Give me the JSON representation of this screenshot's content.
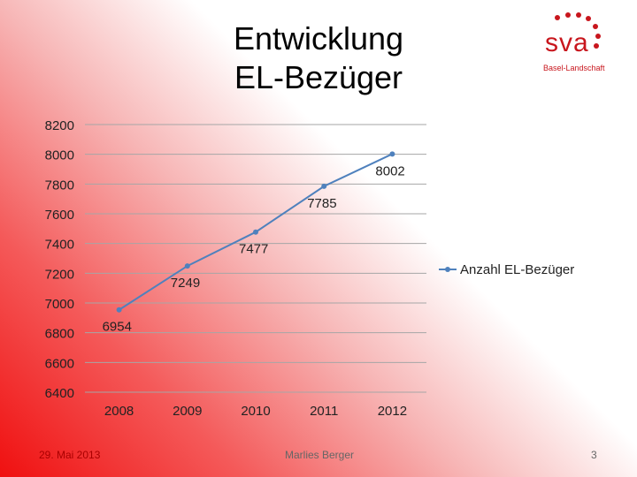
{
  "title_lines": [
    "Entwicklung",
    "EL-Bezüger"
  ],
  "logo": {
    "text": "sva",
    "subtitle": "Basel-Landschaft",
    "color": "#c8161d"
  },
  "footer": {
    "date": "29. Mai 2013",
    "author": "Marlies Berger",
    "page": "3"
  },
  "chart_data": {
    "type": "line",
    "categories": [
      "2008",
      "2009",
      "2010",
      "2011",
      "2012"
    ],
    "series": [
      {
        "name": "Anzahl EL-Bezüger",
        "values": [
          6954,
          7249,
          7477,
          7785,
          8002
        ],
        "color": "#4f81bd"
      }
    ],
    "ylim": [
      6400,
      8200
    ],
    "yticks": [
      6400,
      6600,
      6800,
      7000,
      7200,
      7400,
      7600,
      7800,
      8000,
      8200
    ],
    "grid": true,
    "legend": "right",
    "data_labels": true
  }
}
